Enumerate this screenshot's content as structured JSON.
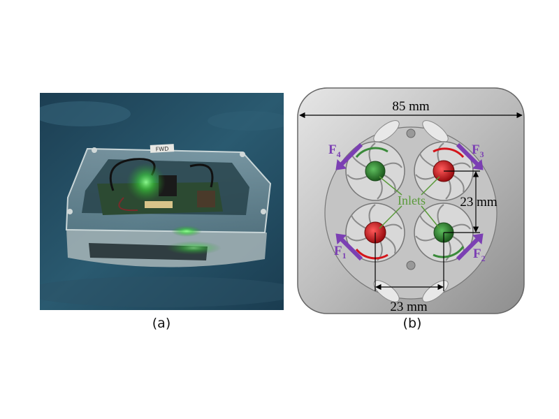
{
  "captions": {
    "a": "(a)",
    "b": "(b)"
  },
  "photo": {
    "tag_text": "FWD"
  },
  "schematic": {
    "width_label": "85 mm",
    "spacing_vertical_label": "23 mm",
    "spacing_horizontal_label": "23 mm",
    "inlets_label": "Inlets",
    "forces": [
      {
        "letter": "F",
        "sub": "1"
      },
      {
        "letter": "F",
        "sub": "2"
      },
      {
        "letter": "F",
        "sub": "3"
      },
      {
        "letter": "F",
        "sub": "4"
      }
    ]
  },
  "colors": {
    "force_arrow": "#7b3fb3",
    "inlet_label": "#5a9a3a",
    "red_rotor": "#d4141a",
    "green_rotor": "#2f7d2f",
    "body_gray": "#b9b9b9",
    "water_blue": "#1f4a60"
  }
}
